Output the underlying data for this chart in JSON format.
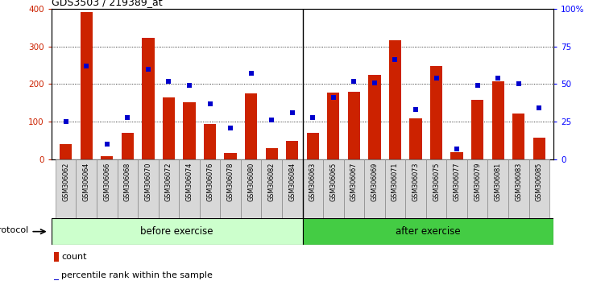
{
  "title": "GDS3503 / 219389_at",
  "categories": [
    "GSM306062",
    "GSM306064",
    "GSM306066",
    "GSM306068",
    "GSM306070",
    "GSM306072",
    "GSM306074",
    "GSM306076",
    "GSM306078",
    "GSM306080",
    "GSM306082",
    "GSM306084",
    "GSM306063",
    "GSM306065",
    "GSM306067",
    "GSM306069",
    "GSM306071",
    "GSM306073",
    "GSM306075",
    "GSM306077",
    "GSM306079",
    "GSM306081",
    "GSM306083",
    "GSM306085"
  ],
  "counts": [
    42,
    390,
    10,
    70,
    322,
    165,
    152,
    95,
    18,
    175,
    30,
    50,
    70,
    178,
    180,
    225,
    315,
    110,
    248,
    20,
    158,
    208,
    123,
    58
  ],
  "percentile_pct": [
    25,
    62,
    10,
    28,
    60,
    52,
    49,
    37,
    21,
    57,
    26,
    31,
    28,
    41,
    52,
    51,
    66,
    33,
    54,
    7,
    49,
    54,
    50,
    34
  ],
  "before_exercise_count": 12,
  "after_exercise_count": 12,
  "bar_color": "#cc2200",
  "point_color": "#0000cc",
  "before_bg": "#ccffcc",
  "after_bg": "#44cc44",
  "ylim_left": [
    0,
    400
  ],
  "ylim_right": [
    0,
    100
  ],
  "yticks_left": [
    0,
    100,
    200,
    300,
    400
  ],
  "yticks_right": [
    0,
    25,
    50,
    75,
    100
  ],
  "ytick_labels_right": [
    "0",
    "25",
    "50",
    "75",
    "100%"
  ],
  "legend_count_label": "count",
  "legend_percentile_label": "percentile rank within the sample",
  "protocol_label": "protocol",
  "before_label": "before exercise",
  "after_label": "after exercise"
}
